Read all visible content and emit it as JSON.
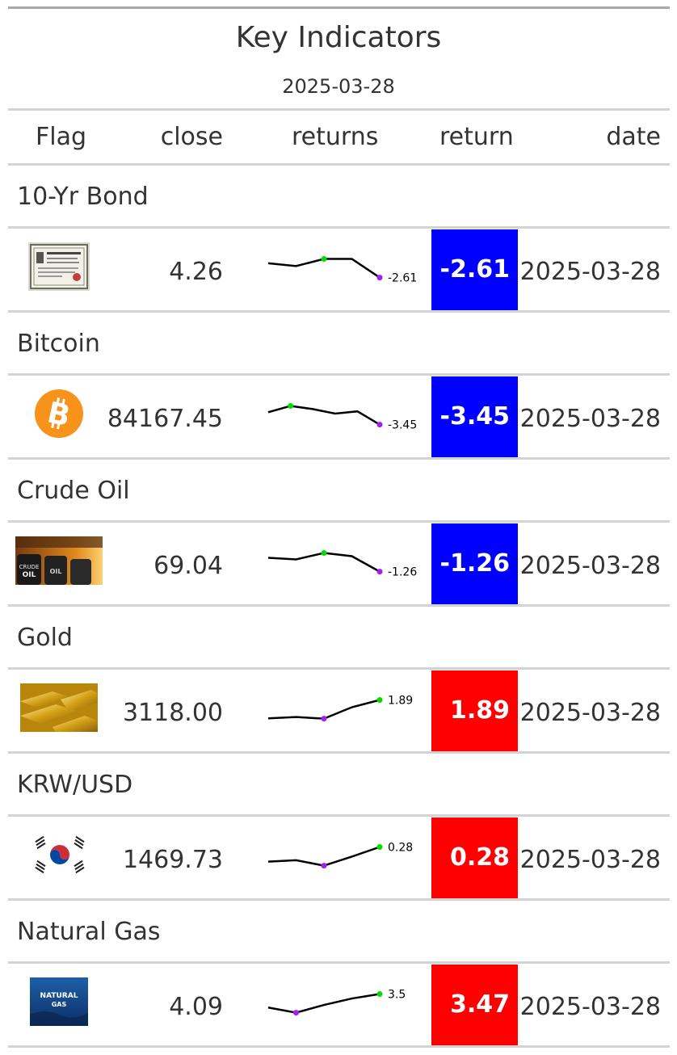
{
  "title": "Key Indicators",
  "subtitle": "2025-03-28",
  "headers": {
    "flag": "Flag",
    "close": "close",
    "returns": "returns",
    "return": "return",
    "date": "date"
  },
  "colors": {
    "negative": "#0000ff",
    "positive": "#ff0000",
    "spark_min": "#a020f0",
    "spark_max": "#00dd00"
  },
  "rows": [
    {
      "group": "10-Yr Bond",
      "icon": "bond-certificate-icon",
      "close": "4.26",
      "spark_label": "-2.61",
      "return": "-2.61",
      "date": "2025-03-28",
      "direction": "negative",
      "spark": [
        4.36,
        4.34,
        4.39,
        4.39,
        4.26
      ]
    },
    {
      "group": "Bitcoin",
      "icon": "bitcoin-icon",
      "close": "84167.45",
      "spark_label": "-3.45",
      "return": "-3.45",
      "date": "2025-03-28",
      "direction": "negative",
      "spark": [
        86900,
        88300,
        87600,
        86600,
        87100,
        84167
      ]
    },
    {
      "group": "Crude Oil",
      "icon": "crude-oil-barrels-icon",
      "close": "69.04",
      "spark_label": "-1.26",
      "return": "-1.26",
      "date": "2025-03-28",
      "direction": "negative",
      "spark": [
        69.9,
        69.8,
        70.2,
        70.0,
        69.04
      ]
    },
    {
      "group": "Gold",
      "icon": "gold-bars-icon",
      "close": "3118.00",
      "spark_label": "1.89",
      "return": "1.89",
      "date": "2025-03-28",
      "direction": "positive",
      "spark": [
        3060,
        3064,
        3059,
        3095,
        3118
      ]
    },
    {
      "group": "KRW/USD",
      "icon": "south-korea-flag-icon",
      "close": "1469.73",
      "spark_label": "0.28",
      "return": "0.28",
      "date": "2025-03-28",
      "direction": "positive",
      "spark": [
        1466.5,
        1466.8,
        1465.6,
        1467.6,
        1469.73
      ]
    },
    {
      "group": "Natural Gas",
      "icon": "natural-gas-icon",
      "close": "4.09",
      "spark_label": "3.5",
      "return": "3.47",
      "date": "2025-03-28",
      "direction": "positive",
      "spark": [
        3.88,
        3.8,
        3.92,
        4.02,
        4.09
      ]
    }
  ]
}
